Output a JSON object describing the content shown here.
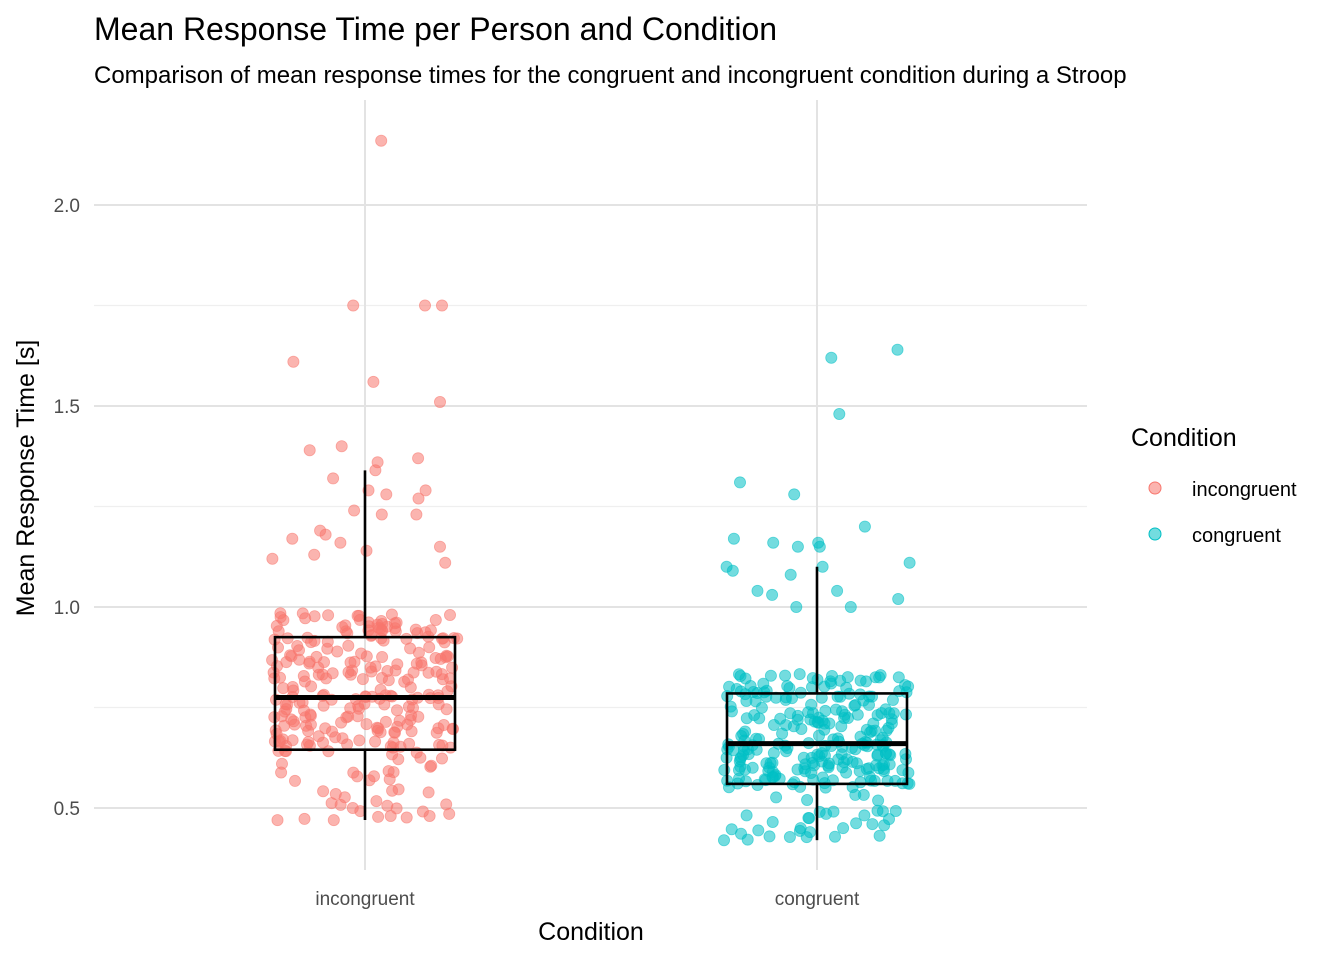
{
  "chart_data": {
    "type": "scatter",
    "subtype": "jitter-with-boxplot",
    "title": "Mean Response Time per Person and Condition",
    "subtitle": "Comparison of mean response times for the congruent and incongruent condition during a Stroop",
    "xlabel": "Condition",
    "ylabel": "Mean Response Time [s]",
    "categories": [
      "incongruent",
      "congruent"
    ],
    "ylim": [
      0.35,
      2.25
    ],
    "yticks": [
      0.5,
      1.0,
      1.5,
      2.0
    ],
    "ytick_labels": [
      "0.5",
      "1.0",
      "1.5",
      "2.0"
    ],
    "grid": true,
    "legend": {
      "title": "Condition",
      "position": "right",
      "entries": [
        "incongruent",
        "congruent"
      ]
    },
    "colors": {
      "incongruent": "#F8766D",
      "congruent": "#00BFC4"
    },
    "box": [
      {
        "name": "incongruent",
        "whisker_low": 0.47,
        "q1": 0.645,
        "median": 0.775,
        "q3": 0.925,
        "whisker_high": 1.34
      },
      {
        "name": "congruent",
        "whisker_low": 0.42,
        "q1": 0.56,
        "median": 0.66,
        "q3": 0.785,
        "whisker_high": 1.1
      }
    ],
    "outliers": [
      {
        "name": "incongruent",
        "values": [
          1.75,
          1.75,
          1.75,
          1.61,
          1.56,
          1.51,
          2.16
        ]
      },
      {
        "name": "congruent",
        "values": [
          1.64,
          1.62,
          1.48
        ]
      }
    ],
    "series": [
      {
        "name": "incongruent",
        "n": 300,
        "distribution": {
          "median": 0.775,
          "q1": 0.645,
          "q3": 0.925,
          "min": 0.47,
          "upper_whisker": 1.34
        },
        "highlight_values": [
          1.39,
          1.4,
          1.37,
          1.34,
          1.36,
          1.32,
          1.29,
          1.29,
          1.28,
          1.27,
          1.24,
          1.23,
          1.23,
          1.19,
          1.18,
          1.17,
          1.16,
          1.15,
          1.14,
          1.13,
          1.12,
          1.11,
          0.47,
          0.47,
          0.48,
          0.48
        ]
      },
      {
        "name": "congruent",
        "n": 300,
        "distribution": {
          "median": 0.66,
          "q1": 0.56,
          "q3": 0.785,
          "min": 0.42,
          "upper_whisker": 1.1
        },
        "highlight_values": [
          1.31,
          1.28,
          1.2,
          1.17,
          1.16,
          1.16,
          1.15,
          1.15,
          1.11,
          1.1,
          1.1,
          1.09,
          1.08,
          1.04,
          1.04,
          1.03,
          1.02,
          1.0,
          1.0,
          0.42,
          0.44,
          0.45,
          0.45,
          0.46
        ]
      }
    ]
  }
}
